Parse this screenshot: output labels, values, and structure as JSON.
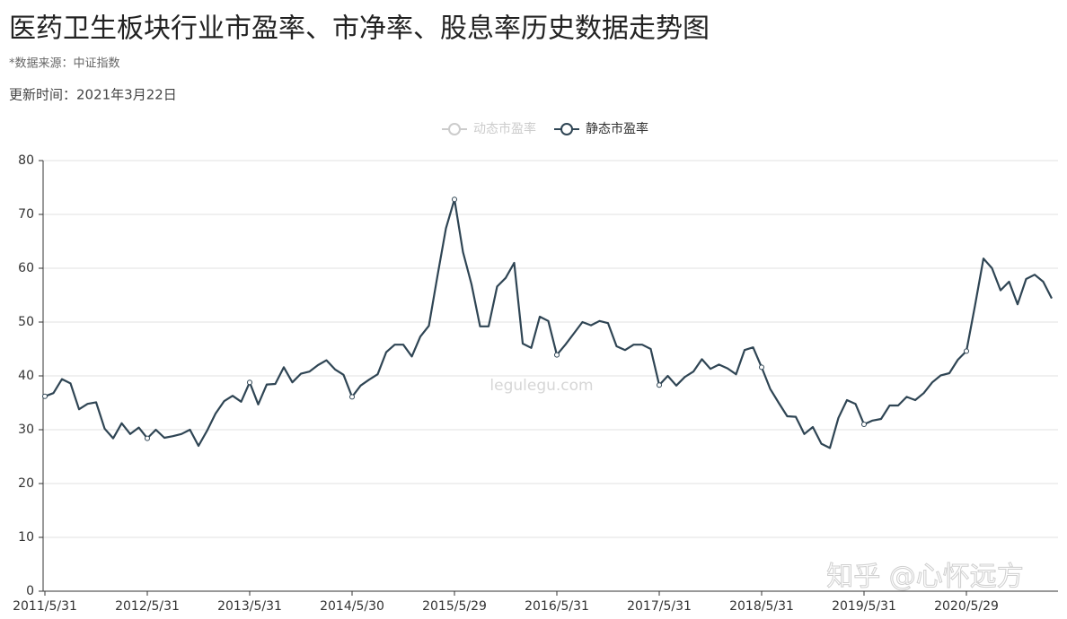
{
  "chart_data": {
    "type": "line",
    "title": "医药卫生板块行业市盈率、市净率、股息率历史数据走势图",
    "subtitle": "*数据来源：中证指数",
    "update_time": "更新时间：2021年3月22日",
    "watermark": "legulegu.com",
    "credit": "知乎 @心怀远方",
    "categories": [
      "2011/5/31",
      null,
      null,
      null,
      null,
      null,
      null,
      null,
      null,
      null,
      null,
      null,
      "2012/5/31",
      null,
      null,
      null,
      null,
      null,
      null,
      null,
      null,
      null,
      null,
      null,
      "2013/5/31",
      null,
      null,
      null,
      null,
      null,
      null,
      null,
      null,
      null,
      null,
      null,
      "2014/5/30",
      null,
      null,
      null,
      null,
      null,
      null,
      null,
      null,
      null,
      null,
      null,
      "2015/5/29",
      null,
      null,
      null,
      null,
      null,
      null,
      null,
      null,
      null,
      null,
      null,
      "2016/5/31",
      null,
      null,
      null,
      null,
      null,
      null,
      null,
      null,
      null,
      null,
      null,
      "2017/5/31",
      null,
      null,
      null,
      null,
      null,
      null,
      null,
      null,
      null,
      null,
      null,
      "2018/5/31",
      null,
      null,
      null,
      null,
      null,
      null,
      null,
      null,
      null,
      null,
      null,
      "2019/5/31",
      null,
      null,
      null,
      null,
      null,
      null,
      null,
      null,
      null,
      null,
      null,
      "2020/5/29",
      null,
      null,
      null,
      null,
      null,
      null,
      null,
      null,
      null,
      null
    ],
    "series": [
      {
        "name": "动态市盈率",
        "color": "#cccccc",
        "hidden": true
      },
      {
        "name": "静态市盈率",
        "color": "#2f4554",
        "values": [
          36.2,
          36.8,
          39.4,
          38.6,
          33.8,
          34.8,
          35.1,
          30.2,
          28.4,
          31.2,
          29.2,
          30.4,
          28.4,
          30.0,
          28.5,
          28.8,
          29.2,
          30.0,
          27.0,
          29.8,
          33.0,
          35.3,
          36.3,
          35.2,
          38.8,
          34.7,
          38.4,
          38.5,
          41.6,
          38.8,
          40.4,
          40.8,
          42.0,
          42.9,
          41.2,
          40.2,
          36.1,
          38.2,
          39.3,
          40.3,
          44.4,
          45.8,
          45.8,
          43.6,
          47.3,
          49.3,
          58.5,
          67.4,
          72.8,
          63.0,
          57.0,
          49.2,
          49.2,
          56.6,
          58.2,
          61.0,
          46.0,
          45.2,
          51.0,
          50.2,
          43.9,
          45.8,
          47.9,
          50.0,
          49.4,
          50.2,
          49.8,
          45.5,
          44.8,
          45.8,
          45.8,
          45.0,
          38.3,
          40.0,
          38.2,
          39.8,
          40.8,
          43.1,
          41.3,
          42.1,
          41.4,
          40.3,
          44.8,
          45.3,
          41.6,
          37.6,
          35.0,
          32.5,
          32.4,
          29.2,
          30.5,
          27.4,
          26.6,
          32.2,
          35.5,
          34.8,
          31.0,
          31.7,
          32.0,
          34.5,
          34.5,
          36.1,
          35.5,
          36.8,
          38.8,
          40.1,
          40.5,
          43.0,
          44.6,
          53.0,
          61.8,
          60.0,
          55.9,
          57.5,
          53.3,
          58.0,
          58.8,
          57.5,
          54.4
        ]
      }
    ],
    "ylim": [
      0,
      80
    ],
    "yticks": [
      0,
      10,
      20,
      30,
      40,
      50,
      60,
      70,
      80
    ],
    "grid": true
  }
}
